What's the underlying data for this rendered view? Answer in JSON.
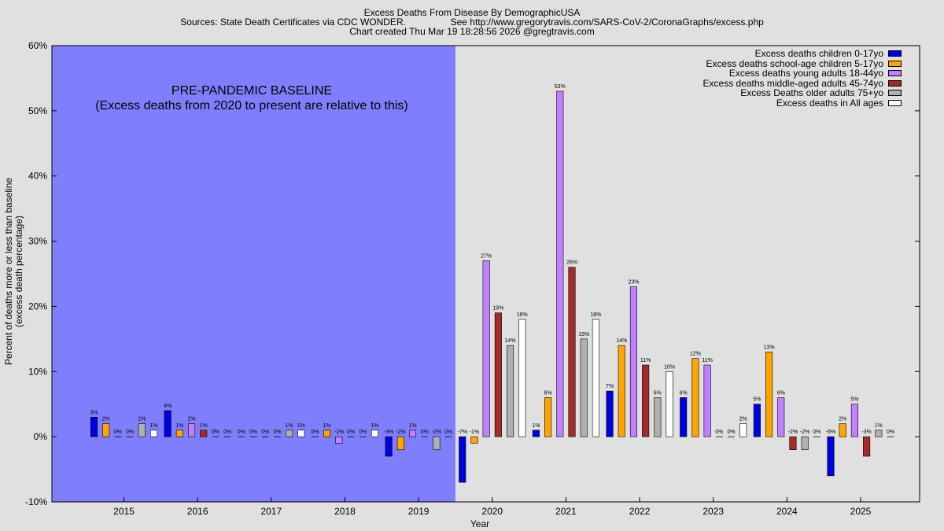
{
  "header": {
    "line1": "Excess Deaths From Disease By DemographicUSA",
    "line2": "Sources: State Death Certificates via CDC WONDER.                 See http://www.gregorytravis.com/SARS-CoV-2/CoronaGraphs/excess.php",
    "line3": "Chart created Thu Mar 19 18:28:56 2026 @gregtravis.com"
  },
  "baseline_note": {
    "line1": "PRE-PANDEMIC BASELINE",
    "line2": "(Excess deaths from 2020 to present are relative to this)"
  },
  "colors": {
    "background": "#e0e0e0",
    "baseline_region": "#7f7ffe"
  },
  "chart_data": {
    "type": "bar",
    "title": "Excess Deaths From Disease By DemographicUSA",
    "xlabel": "Year",
    "ylabel_line1": "Percent of deaths more or less than baseline",
    "ylabel_line2": "(excess death percentage)",
    "ylim": [
      -10,
      60
    ],
    "yticks": [
      -10,
      0,
      10,
      20,
      30,
      40,
      50,
      60
    ],
    "ytick_labels": [
      "-10%",
      "0%",
      "10%",
      "20%",
      "30%",
      "40%",
      "50%",
      "60%"
    ],
    "grid": false,
    "legend_position": "top-right",
    "baseline_years": [
      "2015",
      "2016",
      "2017",
      "2018",
      "2019"
    ],
    "categories": [
      "2015",
      "2016",
      "2017",
      "2018",
      "2019",
      "2020",
      "2021",
      "2022",
      "2023",
      "2024",
      "2025"
    ],
    "series": [
      {
        "name": "Excess deaths children 0-17yo",
        "color": "#0000dd",
        "values": [
          3,
          4,
          0,
          0,
          -3,
          -7,
          1,
          7,
          6,
          5,
          -6
        ]
      },
      {
        "name": "Excess deaths school-age children 5-17yo",
        "color": "#ffa500",
        "values": [
          2,
          1,
          0,
          1,
          -2,
          -1,
          6,
          14,
          12,
          13,
          2
        ]
      },
      {
        "name": "Excess deaths young adults 18-44yo",
        "color": "#c080ff",
        "values": [
          0,
          2,
          0,
          -1,
          1,
          27,
          53,
          23,
          11,
          6,
          5
        ]
      },
      {
        "name": "Excess deaths middle-aged adults 45-74yo",
        "color": "#a52a2a",
        "values": [
          0,
          1,
          0,
          0,
          0,
          19,
          26,
          11,
          0,
          -2,
          -3
        ]
      },
      {
        "name": "Excess Deaths older adults 75+yo",
        "color": "#b0b0b0",
        "values": [
          2,
          0,
          1,
          0,
          -2,
          14,
          15,
          6,
          0,
          -2,
          1
        ]
      },
      {
        "name": "Excess deaths in All ages",
        "color": "#ffffff",
        "values": [
          1,
          0,
          1,
          1,
          0,
          18,
          18,
          10,
          2,
          0,
          0
        ]
      }
    ]
  }
}
